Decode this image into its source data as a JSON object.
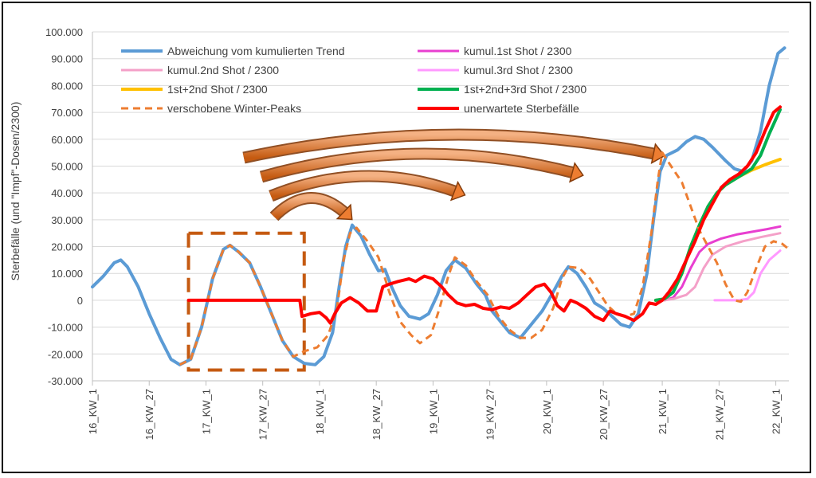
{
  "chart_data": {
    "type": "line",
    "title": "",
    "ylabel": "Sterbefälle (und \"Impf\"-Dosen/2300)",
    "ylim": [
      -30000,
      100000
    ],
    "yticks": [
      -30000,
      -20000,
      -10000,
      0,
      10000,
      20000,
      30000,
      40000,
      50000,
      60000,
      70000,
      80000,
      90000,
      100000
    ],
    "ytick_labels": [
      "-30.000",
      "-20.000",
      "-10.000",
      "0",
      "10.000",
      "20.000",
      "30.000",
      "40.000",
      "50.000",
      "60.000",
      "70.000",
      "80.000",
      "90.000",
      "100.000"
    ],
    "xlim": [
      0,
      319
    ],
    "xticks": [
      {
        "x": 0,
        "label": "16_KW_1"
      },
      {
        "x": 26,
        "label": "16_KW_27"
      },
      {
        "x": 52,
        "label": "17_KW_1"
      },
      {
        "x": 78,
        "label": "17_KW_27"
      },
      {
        "x": 104,
        "label": "18_KW_1"
      },
      {
        "x": 130,
        "label": "18_KW_27"
      },
      {
        "x": 156,
        "label": "19_KW_1"
      },
      {
        "x": 182,
        "label": "19_KW_27"
      },
      {
        "x": 208,
        "label": "20_KW_1"
      },
      {
        "x": 234,
        "label": "20_KW_27"
      },
      {
        "x": 261,
        "label": "21_KW_1"
      },
      {
        "x": 287,
        "label": "21_KW_27"
      },
      {
        "x": 313,
        "label": "22_KW_1"
      }
    ],
    "grid": true,
    "legend_position": "top-left",
    "series": [
      {
        "name": "Abweichung vom kumulierten Trend",
        "color": "#5B9BD5",
        "width": 4,
        "dash": "",
        "points": [
          [
            0,
            5000
          ],
          [
            5,
            9000
          ],
          [
            10,
            14000
          ],
          [
            13,
            15000
          ],
          [
            16,
            12500
          ],
          [
            21,
            5000
          ],
          [
            26,
            -5000
          ],
          [
            31,
            -14000
          ],
          [
            36,
            -22000
          ],
          [
            40,
            -24000
          ],
          [
            45,
            -22000
          ],
          [
            50,
            -10000
          ],
          [
            55,
            8000
          ],
          [
            60,
            19000
          ],
          [
            63,
            20500
          ],
          [
            67,
            18000
          ],
          [
            72,
            14000
          ],
          [
            77,
            5000
          ],
          [
            82,
            -5000
          ],
          [
            87,
            -15000
          ],
          [
            92,
            -21000
          ],
          [
            97,
            -23500
          ],
          [
            102,
            -24000
          ],
          [
            106,
            -21000
          ],
          [
            110,
            -12000
          ],
          [
            113,
            5000
          ],
          [
            116,
            20000
          ],
          [
            119,
            28000
          ],
          [
            123,
            24000
          ],
          [
            127,
            17000
          ],
          [
            131,
            11000
          ],
          [
            134,
            11500
          ],
          [
            137,
            5000
          ],
          [
            141,
            -2000
          ],
          [
            145,
            -6000
          ],
          [
            150,
            -7000
          ],
          [
            154,
            -5000
          ],
          [
            158,
            2000
          ],
          [
            162,
            11000
          ],
          [
            166,
            15000
          ],
          [
            171,
            12000
          ],
          [
            176,
            6000
          ],
          [
            180,
            2000
          ],
          [
            183,
            -4000
          ],
          [
            187,
            -8000
          ],
          [
            191,
            -12000
          ],
          [
            196,
            -14000
          ],
          [
            201,
            -9000
          ],
          [
            206,
            -4000
          ],
          [
            211,
            3000
          ],
          [
            215,
            9000
          ],
          [
            218,
            12500
          ],
          [
            222,
            10000
          ],
          [
            226,
            5000
          ],
          [
            230,
            -1000
          ],
          [
            234,
            -3000
          ],
          [
            238,
            -6000
          ],
          [
            242,
            -9000
          ],
          [
            246,
            -10000
          ],
          [
            250,
            -5000
          ],
          [
            254,
            10000
          ],
          [
            257,
            30000
          ],
          [
            260,
            48000
          ],
          [
            263,
            54000
          ],
          [
            268,
            56000
          ],
          [
            272,
            59000
          ],
          [
            276,
            61000
          ],
          [
            280,
            60000
          ],
          [
            284,
            57000
          ],
          [
            290,
            52000
          ],
          [
            294,
            49000
          ],
          [
            298,
            48000
          ],
          [
            302,
            52000
          ],
          [
            306,
            63000
          ],
          [
            310,
            80000
          ],
          [
            314,
            92000
          ],
          [
            317,
            94000
          ]
        ]
      },
      {
        "name": "kumul.1st Shot / 2300",
        "color": "#E83FD0",
        "width": 3,
        "dash": "",
        "points": [
          [
            262,
            0
          ],
          [
            266,
            1000
          ],
          [
            270,
            5000
          ],
          [
            274,
            12000
          ],
          [
            278,
            18000
          ],
          [
            282,
            21000
          ],
          [
            288,
            23000
          ],
          [
            295,
            24500
          ],
          [
            302,
            25500
          ],
          [
            309,
            26500
          ],
          [
            315,
            27500
          ]
        ]
      },
      {
        "name": "kumul.2nd Shot / 2300",
        "color": "#F4A0C8",
        "width": 3,
        "dash": "",
        "points": [
          [
            262,
            0
          ],
          [
            266,
            500
          ],
          [
            272,
            2000
          ],
          [
            276,
            5000
          ],
          [
            280,
            12000
          ],
          [
            284,
            17000
          ],
          [
            290,
            20000
          ],
          [
            298,
            22000
          ],
          [
            306,
            23500
          ],
          [
            315,
            25000
          ]
        ]
      },
      {
        "name": "kumul.3rd Shot / 2300",
        "color": "#FF99FF",
        "width": 3,
        "dash": "",
        "points": [
          [
            285,
            0
          ],
          [
            290,
            0
          ],
          [
            296,
            0
          ],
          [
            300,
            500
          ],
          [
            303,
            3000
          ],
          [
            306,
            10000
          ],
          [
            310,
            15000
          ],
          [
            315,
            18500
          ]
        ]
      },
      {
        "name": "1st+2nd Shot / 2300",
        "color": "#FFC000",
        "width": 4,
        "dash": "",
        "points": [
          [
            258,
            0
          ],
          [
            262,
            500
          ],
          [
            266,
            3000
          ],
          [
            270,
            10000
          ],
          [
            274,
            20000
          ],
          [
            278,
            28000
          ],
          [
            282,
            35000
          ],
          [
            286,
            40000
          ],
          [
            290,
            43000
          ],
          [
            296,
            46000
          ],
          [
            302,
            48500
          ],
          [
            308,
            50500
          ],
          [
            315,
            52500
          ]
        ]
      },
      {
        "name": "1st+2nd+3rd Shot / 2300",
        "color": "#00B050",
        "width": 4,
        "dash": "",
        "points": [
          [
            258,
            0
          ],
          [
            262,
            500
          ],
          [
            266,
            3000
          ],
          [
            270,
            10000
          ],
          [
            274,
            20000
          ],
          [
            278,
            28000
          ],
          [
            282,
            35000
          ],
          [
            286,
            40000
          ],
          [
            290,
            43000
          ],
          [
            296,
            46000
          ],
          [
            302,
            49000
          ],
          [
            306,
            54000
          ],
          [
            310,
            62000
          ],
          [
            315,
            71000
          ]
        ]
      },
      {
        "name": "verschobene Winter-Peaks",
        "color": "#ED7D31",
        "width": 3,
        "dash": "9 6",
        "points": [
          [
            40,
            -24000
          ],
          [
            45,
            -22000
          ],
          [
            50,
            -10000
          ],
          [
            55,
            8000
          ],
          [
            60,
            19000
          ],
          [
            63,
            20500
          ],
          [
            67,
            18000
          ],
          [
            72,
            14000
          ],
          [
            77,
            5000
          ],
          [
            82,
            -5000
          ],
          [
            87,
            -15000
          ],
          [
            92,
            -21000
          ],
          [
            97,
            -19000
          ],
          [
            103,
            -17500
          ],
          [
            108,
            -13000
          ],
          [
            112,
            -3000
          ],
          [
            115,
            15000
          ],
          [
            118,
            25000
          ],
          [
            121,
            27000
          ],
          [
            126,
            22000
          ],
          [
            131,
            16000
          ],
          [
            136,
            3000
          ],
          [
            141,
            -8000
          ],
          [
            146,
            -13000
          ],
          [
            150,
            -16000
          ],
          [
            155,
            -13000
          ],
          [
            159,
            -3000
          ],
          [
            163,
            9000
          ],
          [
            166,
            16000
          ],
          [
            171,
            13000
          ],
          [
            176,
            7000
          ],
          [
            181,
            2000
          ],
          [
            186,
            -6000
          ],
          [
            191,
            -11000
          ],
          [
            196,
            -14000
          ],
          [
            201,
            -14000
          ],
          [
            206,
            -11000
          ],
          [
            211,
            -3000
          ],
          [
            215,
            8000
          ],
          [
            218,
            12500
          ],
          [
            223,
            12000
          ],
          [
            228,
            8000
          ],
          [
            232,
            3000
          ],
          [
            236,
            -2000
          ],
          [
            240,
            -5000
          ],
          [
            244,
            -6000
          ],
          [
            248,
            -5000
          ],
          [
            252,
            5000
          ],
          [
            256,
            25000
          ],
          [
            259,
            45000
          ],
          [
            261,
            55000
          ],
          [
            265,
            50000
          ],
          [
            270,
            44000
          ],
          [
            274,
            35000
          ],
          [
            278,
            26000
          ],
          [
            282,
            20000
          ],
          [
            286,
            14000
          ],
          [
            290,
            6000
          ],
          [
            294,
            0
          ],
          [
            297,
            -500
          ],
          [
            300,
            3000
          ],
          [
            304,
            12000
          ],
          [
            308,
            20000
          ],
          [
            312,
            22000
          ],
          [
            316,
            21000
          ],
          [
            319,
            19000
          ]
        ]
      },
      {
        "name": "unerwartete Sterbefälle",
        "color": "#FF0000",
        "width": 4,
        "dash": "",
        "points": [
          [
            44,
            0
          ],
          [
            66,
            0
          ],
          [
            88,
            0
          ],
          [
            95,
            0
          ],
          [
            96,
            -6000
          ],
          [
            100,
            -5000
          ],
          [
            104,
            -4500
          ],
          [
            107,
            -6500
          ],
          [
            109,
            -8500
          ],
          [
            111,
            -5000
          ],
          [
            114,
            -1000
          ],
          [
            118,
            1000
          ],
          [
            122,
            -1000
          ],
          [
            126,
            -4000
          ],
          [
            130,
            -4000
          ],
          [
            133,
            5000
          ],
          [
            136,
            6000
          ],
          [
            140,
            7000
          ],
          [
            145,
            8000
          ],
          [
            148,
            7000
          ],
          [
            152,
            9000
          ],
          [
            156,
            8000
          ],
          [
            160,
            5000
          ],
          [
            163,
            2000
          ],
          [
            167,
            -1000
          ],
          [
            171,
            -2000
          ],
          [
            175,
            -1500
          ],
          [
            179,
            -3000
          ],
          [
            183,
            -3500
          ],
          [
            187,
            -2500
          ],
          [
            191,
            -3000
          ],
          [
            195,
            -1000
          ],
          [
            199,
            2000
          ],
          [
            203,
            5000
          ],
          [
            207,
            6000
          ],
          [
            210,
            3000
          ],
          [
            213,
            -2000
          ],
          [
            216,
            -4000
          ],
          [
            219,
            0
          ],
          [
            222,
            -1000
          ],
          [
            226,
            -3000
          ],
          [
            230,
            -6000
          ],
          [
            234,
            -7500
          ],
          [
            237,
            -4000
          ],
          [
            240,
            -5000
          ],
          [
            244,
            -6000
          ],
          [
            248,
            -7500
          ],
          [
            252,
            -5000
          ],
          [
            255,
            -1000
          ],
          [
            258,
            -1500
          ],
          [
            261,
            0
          ],
          [
            264,
            3000
          ],
          [
            268,
            8000
          ],
          [
            272,
            15000
          ],
          [
            276,
            22000
          ],
          [
            280,
            30000
          ],
          [
            284,
            36000
          ],
          [
            288,
            42000
          ],
          [
            292,
            45000
          ],
          [
            296,
            47000
          ],
          [
            300,
            50000
          ],
          [
            304,
            55000
          ],
          [
            308,
            63000
          ],
          [
            312,
            70000
          ],
          [
            315,
            72000
          ]
        ]
      }
    ]
  }
}
